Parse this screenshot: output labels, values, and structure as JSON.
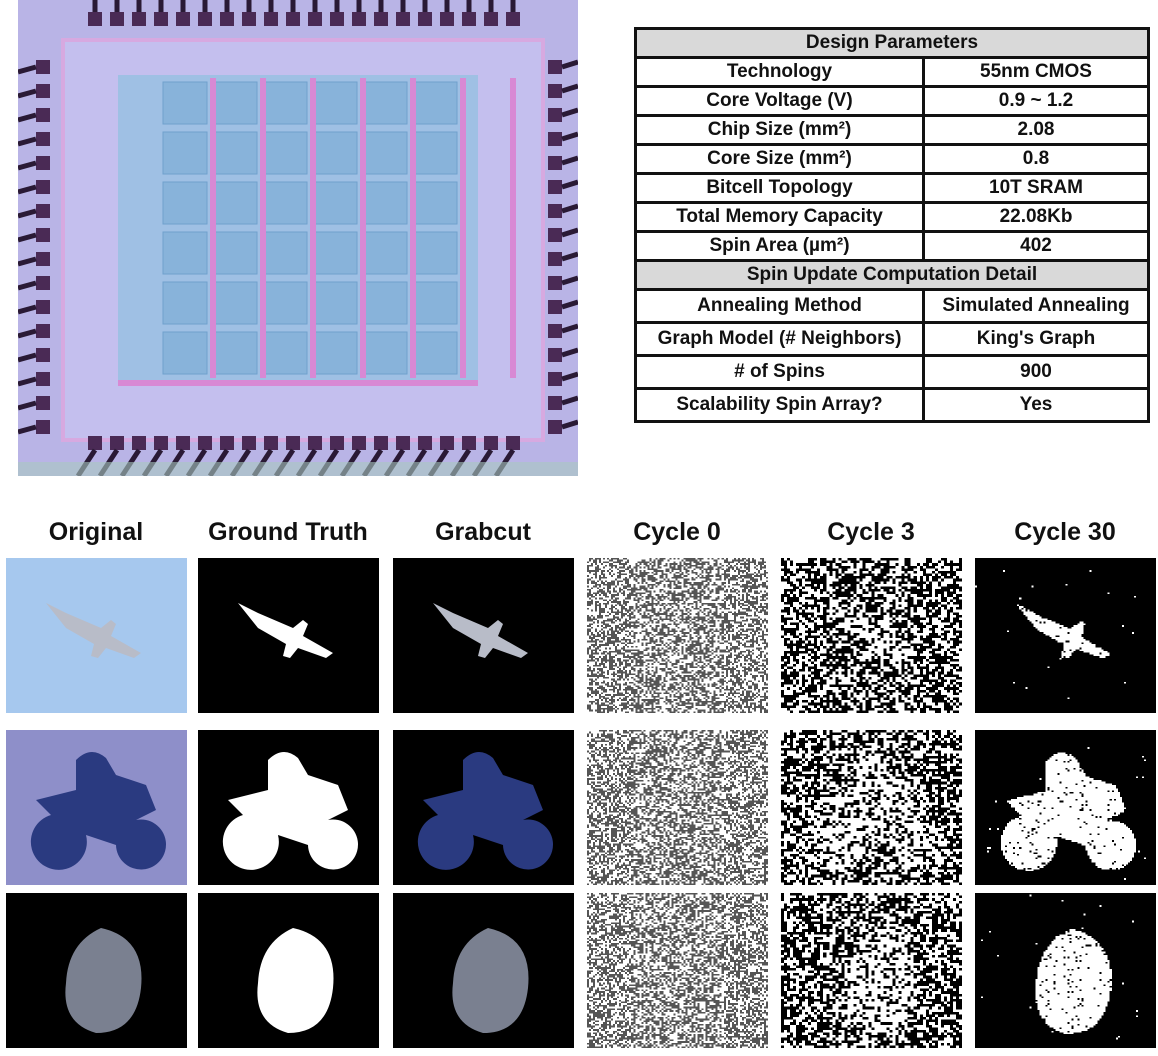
{
  "table": {
    "section1": "Design Parameters",
    "rows1": [
      {
        "k": "Technology",
        "v": "55nm CMOS"
      },
      {
        "k": "Core Voltage (V)",
        "v": "0.9 ~ 1.2"
      },
      {
        "k": "Chip Size (mm²)",
        "v": "2.08"
      },
      {
        "k": "Core Size (mm²)",
        "v": "0.8"
      },
      {
        "k": "Bitcell Topology",
        "v": "10T SRAM"
      },
      {
        "k": "Total Memory Capacity",
        "v": "22.08Kb"
      },
      {
        "k": "Spin Area (µm²)",
        "v": "402"
      }
    ],
    "section2": "Spin Update Computation Detail",
    "rows2": [
      {
        "k": "Annealing Method",
        "v": "Simulated Annealing"
      },
      {
        "k": "Graph Model (# Neighbors)",
        "v": "King's Graph"
      },
      {
        "k": "# of Spins",
        "v": "900"
      },
      {
        "k": "Scalability Spin Array?",
        "v": "Yes"
      }
    ]
  },
  "columns": [
    "Original",
    "Ground Truth",
    "Grabcut",
    "Cycle 0",
    "Cycle 3",
    "Cycle 30"
  ],
  "rows": [
    "airplane",
    "motorbike",
    "moon"
  ],
  "colors": {
    "chip": "#b9b4e6",
    "sky": "#a6c8ee",
    "header_fill": "#d9d9d9"
  }
}
